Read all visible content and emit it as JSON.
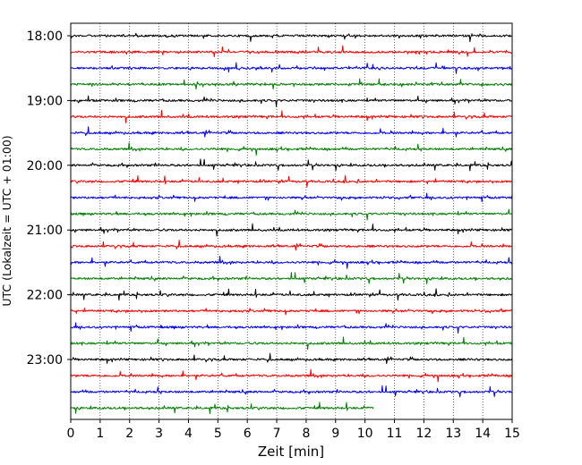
{
  "chart_data": {
    "type": "line",
    "title": "",
    "xlabel": "Zeit  [min]",
    "ylabel": "UTC (Lokalzeit = UTC + 01:00)",
    "xlim": [
      0,
      15
    ],
    "xticks": [
      "0",
      "1",
      "2",
      "3",
      "4",
      "5",
      "6",
      "7",
      "8",
      "9",
      "10",
      "11",
      "12",
      "13",
      "14",
      "15"
    ],
    "yticks": [
      {
        "label": "18:00",
        "hour_offset": 0
      },
      {
        "label": "19:00",
        "hour_offset": 1
      },
      {
        "label": "20:00",
        "hour_offset": 2
      },
      {
        "label": "21:00",
        "hour_offset": 3
      },
      {
        "label": "22:00",
        "hour_offset": 4
      },
      {
        "label": "23:00",
        "hour_offset": 5
      }
    ],
    "grid": "vertical-dotted",
    "row_minutes": 15,
    "start_time": "18:00",
    "last_row_end_min": 10.3,
    "colors": [
      "#000000",
      "#ff0000",
      "#0000ff",
      "#008000"
    ],
    "rows": [
      {
        "start": "18:00",
        "color": "#000000",
        "end_min": 15
      },
      {
        "start": "18:15",
        "color": "#ff0000",
        "end_min": 15
      },
      {
        "start": "18:30",
        "color": "#0000ff",
        "end_min": 15
      },
      {
        "start": "18:45",
        "color": "#008000",
        "end_min": 15
      },
      {
        "start": "19:00",
        "color": "#000000",
        "end_min": 15
      },
      {
        "start": "19:15",
        "color": "#ff0000",
        "end_min": 15
      },
      {
        "start": "19:30",
        "color": "#0000ff",
        "end_min": 15
      },
      {
        "start": "19:45",
        "color": "#008000",
        "end_min": 15
      },
      {
        "start": "20:00",
        "color": "#000000",
        "end_min": 15
      },
      {
        "start": "20:15",
        "color": "#ff0000",
        "end_min": 15
      },
      {
        "start": "20:30",
        "color": "#0000ff",
        "end_min": 15
      },
      {
        "start": "20:45",
        "color": "#008000",
        "end_min": 15
      },
      {
        "start": "21:00",
        "color": "#000000",
        "end_min": 15
      },
      {
        "start": "21:15",
        "color": "#ff0000",
        "end_min": 15
      },
      {
        "start": "21:30",
        "color": "#0000ff",
        "end_min": 15
      },
      {
        "start": "21:45",
        "color": "#008000",
        "end_min": 15
      },
      {
        "start": "22:00",
        "color": "#000000",
        "end_min": 15
      },
      {
        "start": "22:15",
        "color": "#ff0000",
        "end_min": 15
      },
      {
        "start": "22:30",
        "color": "#0000ff",
        "end_min": 15
      },
      {
        "start": "22:45",
        "color": "#008000",
        "end_min": 15
      },
      {
        "start": "23:00",
        "color": "#000000",
        "end_min": 15
      },
      {
        "start": "23:15",
        "color": "#ff0000",
        "end_min": 15
      },
      {
        "start": "23:30",
        "color": "#0000ff",
        "end_min": 15
      },
      {
        "start": "23:45",
        "color": "#008000",
        "end_min": 10.3
      }
    ]
  }
}
